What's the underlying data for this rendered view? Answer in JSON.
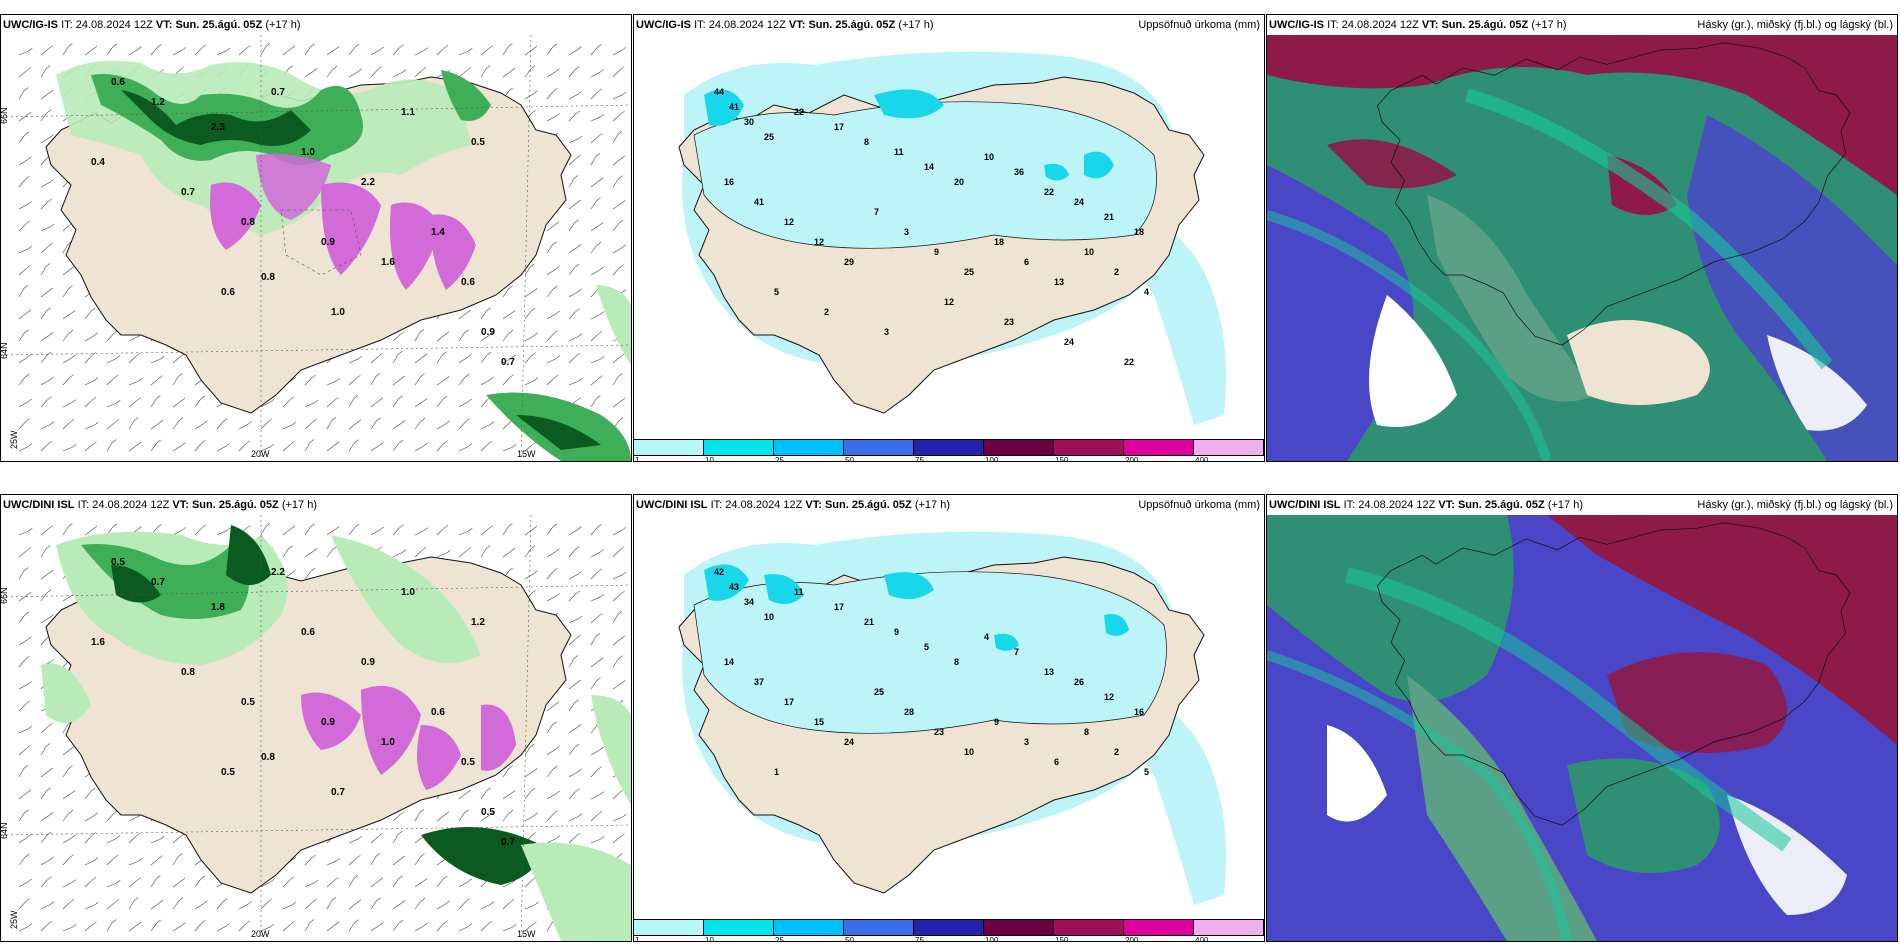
{
  "rows": [
    {
      "model": "UWC/IG-IS",
      "it_label": "IT:",
      "it_value": "24.08.2024 12Z",
      "vt_label": "VT:",
      "vt_value": "Sun. 25.ágú. 05Z",
      "lead": "(+17 h)"
    },
    {
      "model": "UWC/DINI ISL",
      "it_label": "IT:",
      "it_value": "24.08.2024 12Z",
      "vt_label": "VT:",
      "vt_value": "Sun. 25.ágú. 05Z",
      "lead": "(+17 h)"
    }
  ],
  "precip_panel": {
    "right_title": "Uppsöfnuð úrkoma (mm)"
  },
  "cloud_panel": {
    "right_title": "Hásky (gr.), miðský (fj.bl.) og lágský (bl.)"
  },
  "axis_labels": {
    "lat_66": "66N",
    "lat_64": "64N",
    "lon_20w": "20W",
    "lon_15w": "15W",
    "lon_25w": "25W",
    "lat_66_right": "66N",
    "lat_64_right": "64N"
  },
  "colorbar": {
    "ticks": [
      "1",
      "10",
      "25",
      "50",
      "75",
      "100",
      "150",
      "200",
      "400"
    ],
    "colors": [
      "#b8f7f7",
      "#00e5ee",
      "#00bfff",
      "#3a6ee8",
      "#2222aa",
      "#6a0040",
      "#a0105a",
      "#e000a0",
      "#f0b0f0"
    ]
  },
  "colors": {
    "land": "#efe3d3",
    "sea_precip": "#bdf4f8",
    "green_light": "#b8ebb8",
    "green_mid": "#3fae58",
    "green_dark": "#0b5a1f",
    "magenta": "#d26ad8",
    "cyan_mid": "#19d7ea",
    "cloud_red": "#8e1a48",
    "cloud_blue": "#4a46c8",
    "cloud_teal": "#2f8f74"
  },
  "precip_top_values": [
    "44",
    "41",
    "30",
    "25",
    "22",
    "17",
    "8",
    "11",
    "14",
    "20",
    "10",
    "36",
    "22",
    "24",
    "21",
    "18",
    "16",
    "41",
    "12",
    "12",
    "29",
    "7",
    "3",
    "9",
    "25",
    "18",
    "6",
    "13",
    "10",
    "2",
    "4",
    "5",
    "2",
    "3",
    "12",
    "23",
    "24",
    "22"
  ],
  "precip_bottom_values": [
    "42",
    "43",
    "34",
    "10",
    "11",
    "17",
    "21",
    "9",
    "5",
    "8",
    "4",
    "7",
    "13",
    "26",
    "12",
    "16",
    "14",
    "37",
    "17",
    "15",
    "24",
    "25",
    "28",
    "23",
    "10",
    "9",
    "3",
    "6",
    "8",
    "2",
    "5",
    "1"
  ],
  "wind_top_values": [
    "0.6",
    "1.2",
    "2.3",
    "0.7",
    "1.0",
    "2.2",
    "1.1",
    "0.5",
    "0.4",
    "0.7",
    "0.8",
    "0.9",
    "1.6",
    "1.4",
    "0.6",
    "0.8",
    "1.0",
    "0.9",
    "0.7",
    "0.6"
  ],
  "wind_bottom_values": [
    "0.5",
    "0.7",
    "1.8",
    "2.2",
    "0.6",
    "0.9",
    "1.0",
    "1.2",
    "1.6",
    "0.8",
    "0.5",
    "0.9",
    "1.0",
    "0.6",
    "0.5",
    "0.8",
    "0.7",
    "0.5",
    "0.7",
    "0.5"
  ]
}
